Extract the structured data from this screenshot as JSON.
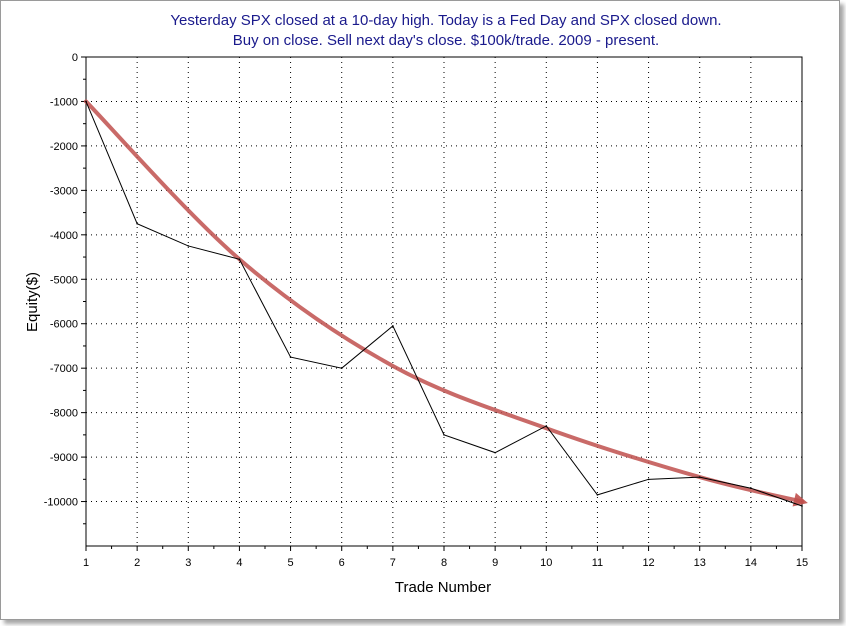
{
  "chart_data": {
    "type": "line",
    "title_lines": [
      "Yesterday SPX closed at a 10-day high. Today is a Fed Day and SPX closed down.",
      "Buy on close. Sell next day's close. $100k/trade. 2009 - present."
    ],
    "xlabel": "Trade Number",
    "ylabel": "Equity($)",
    "xlim": [
      1,
      15
    ],
    "ylim": [
      -11000,
      0
    ],
    "x_ticks": [
      1,
      2,
      3,
      4,
      5,
      6,
      7,
      8,
      9,
      10,
      11,
      12,
      13,
      14,
      15
    ],
    "y_ticks": [
      0,
      -1000,
      -2000,
      -3000,
      -4000,
      -5000,
      -6000,
      -7000,
      -8000,
      -9000,
      -10000
    ],
    "grid": true,
    "series": [
      {
        "x": [
          1,
          2,
          3,
          4,
          5,
          6,
          7,
          8,
          9,
          10,
          11,
          12,
          13,
          14,
          15
        ],
        "values": [
          -1000,
          -3750,
          -4250,
          -4550,
          -6750,
          -7000,
          -6050,
          -8500,
          -8900,
          -8300,
          -9850,
          -9500,
          -9450,
          -9700,
          -10100
        ]
      }
    ],
    "trend_arrow": {
      "x": [
        1,
        4,
        7,
        10,
        13,
        15
      ],
      "values": [
        -1000,
        -4550,
        -6950,
        -8350,
        -9450,
        -10000
      ]
    },
    "colors": {
      "title": "#1a1a8c",
      "line": "#000000",
      "trend": "#c0504d",
      "grid": "#000000"
    }
  }
}
